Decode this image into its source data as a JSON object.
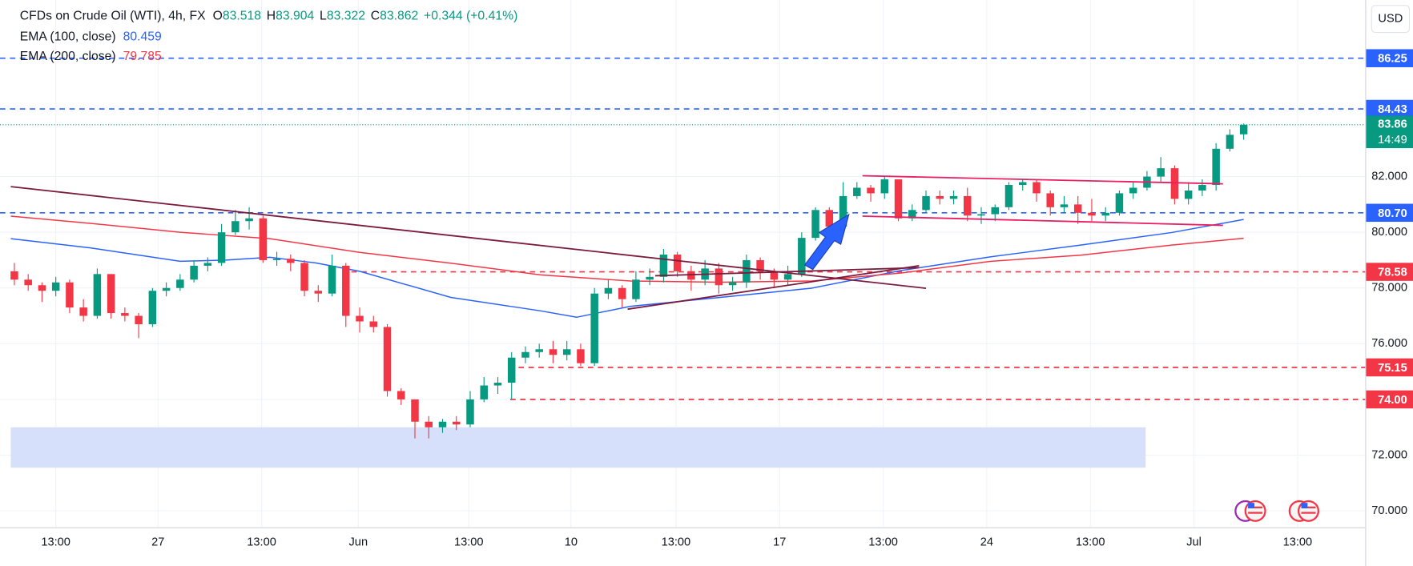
{
  "chart_data": {
    "type": "candlestick",
    "header": {
      "symbol": "CFDs on Crude Oil (WTI), 4h, FX",
      "ohlc_labels": [
        "O",
        "H",
        "L",
        "C"
      ],
      "change": "+0.344 (+0.41%)"
    },
    "currency": "USD",
    "up_color": "#089981",
    "down_color": "#f23645",
    "ohlc": [
      [
        78.6,
        78.9,
        78.1,
        78.3
      ],
      [
        78.3,
        78.5,
        77.9,
        78.1
      ],
      [
        78.1,
        78.2,
        77.5,
        77.9
      ],
      [
        77.9,
        78.4,
        77.7,
        78.2
      ],
      [
        78.2,
        78.3,
        77.1,
        77.3
      ],
      [
        77.3,
        77.6,
        76.8,
        77.0
      ],
      [
        77.0,
        78.7,
        76.9,
        78.5
      ],
      [
        78.5,
        78.5,
        76.9,
        77.1
      ],
      [
        77.1,
        77.3,
        76.8,
        77.0
      ],
      [
        77.0,
        77.1,
        76.2,
        76.7
      ],
      [
        76.7,
        78.0,
        76.6,
        77.9
      ],
      [
        77.9,
        78.2,
        77.7,
        78.0
      ],
      [
        78.0,
        78.5,
        77.9,
        78.3
      ],
      [
        78.3,
        79.0,
        78.2,
        78.8
      ],
      [
        78.8,
        79.1,
        78.6,
        78.9
      ],
      [
        78.9,
        80.3,
        78.8,
        80.0
      ],
      [
        80.0,
        80.8,
        79.9,
        80.4
      ],
      [
        80.4,
        80.9,
        80.1,
        80.5
      ],
      [
        80.5,
        80.6,
        78.9,
        79.0
      ],
      [
        79.0,
        79.3,
        78.8,
        79.05
      ],
      [
        79.05,
        79.2,
        78.6,
        78.9
      ],
      [
        78.9,
        79.0,
        77.7,
        77.9
      ],
      [
        77.9,
        78.1,
        77.5,
        77.8
      ],
      [
        77.8,
        79.2,
        77.7,
        78.8
      ],
      [
        78.8,
        78.9,
        76.6,
        77.0
      ],
      [
        77.0,
        77.3,
        76.4,
        76.8
      ],
      [
        76.8,
        77.0,
        76.4,
        76.6
      ],
      [
        76.6,
        76.7,
        74.1,
        74.3
      ],
      [
        74.3,
        74.4,
        73.8,
        74.0
      ],
      [
        74.0,
        74.0,
        72.6,
        73.2
      ],
      [
        73.2,
        73.4,
        72.6,
        73.0
      ],
      [
        73.0,
        73.3,
        72.8,
        73.2
      ],
      [
        73.2,
        73.4,
        72.9,
        73.1
      ],
      [
        73.1,
        74.3,
        73.0,
        74.0
      ],
      [
        74.0,
        74.8,
        73.9,
        74.5
      ],
      [
        74.5,
        74.8,
        74.2,
        74.6
      ],
      [
        74.6,
        75.7,
        74.0,
        75.5
      ],
      [
        75.5,
        75.9,
        75.3,
        75.7
      ],
      [
        75.7,
        76.0,
        75.5,
        75.8
      ],
      [
        75.8,
        76.1,
        75.3,
        75.6
      ],
      [
        75.6,
        76.1,
        75.4,
        75.8
      ],
      [
        75.8,
        76.0,
        75.2,
        75.3
      ],
      [
        75.3,
        78.0,
        75.2,
        77.8
      ],
      [
        77.8,
        78.3,
        77.6,
        78.0
      ],
      [
        78.0,
        78.1,
        77.3,
        77.6
      ],
      [
        77.6,
        78.6,
        77.5,
        78.3
      ],
      [
        78.3,
        78.7,
        78.1,
        78.4
      ],
      [
        78.4,
        79.4,
        78.2,
        79.2
      ],
      [
        79.2,
        79.3,
        78.4,
        78.6
      ],
      [
        78.6,
        78.8,
        77.9,
        78.3
      ],
      [
        78.3,
        79.0,
        78.1,
        78.7
      ],
      [
        78.7,
        78.9,
        77.8,
        78.1
      ],
      [
        78.1,
        78.4,
        77.9,
        78.2
      ],
      [
        78.2,
        79.2,
        78.0,
        79.0
      ],
      [
        79.0,
        79.1,
        78.3,
        78.6
      ],
      [
        78.6,
        78.7,
        78.0,
        78.3
      ],
      [
        78.3,
        78.8,
        78.1,
        78.5
      ],
      [
        78.5,
        80.0,
        78.4,
        79.8
      ],
      [
        79.8,
        80.9,
        79.7,
        80.8
      ],
      [
        80.8,
        80.9,
        80.0,
        80.2
      ],
      [
        80.2,
        81.8,
        80.1,
        81.3
      ],
      [
        81.3,
        81.8,
        81.2,
        81.6
      ],
      [
        81.6,
        81.7,
        81.1,
        81.4
      ],
      [
        81.4,
        82.0,
        81.2,
        81.9
      ],
      [
        81.9,
        81.9,
        80.4,
        80.5
      ],
      [
        80.5,
        81.0,
        80.4,
        80.8
      ],
      [
        80.8,
        81.5,
        80.7,
        81.3
      ],
      [
        81.3,
        81.5,
        81.0,
        81.2
      ],
      [
        81.2,
        81.5,
        81.0,
        81.3
      ],
      [
        81.3,
        81.6,
        80.4,
        80.6
      ],
      [
        80.6,
        80.9,
        80.3,
        80.65
      ],
      [
        80.65,
        81.0,
        80.4,
        80.9
      ],
      [
        80.9,
        81.8,
        80.8,
        81.7
      ],
      [
        81.7,
        81.9,
        81.5,
        81.8
      ],
      [
        81.8,
        81.9,
        81.1,
        81.4
      ],
      [
        81.4,
        81.5,
        80.6,
        80.9
      ],
      [
        80.9,
        81.3,
        80.7,
        81.0
      ],
      [
        81.0,
        81.3,
        80.3,
        80.7
      ],
      [
        80.7,
        81.2,
        80.4,
        80.6
      ],
      [
        80.6,
        80.9,
        80.4,
        80.7
      ],
      [
        80.7,
        81.5,
        80.6,
        81.4
      ],
      [
        81.4,
        81.8,
        81.2,
        81.6
      ],
      [
        81.6,
        82.2,
        81.5,
        82.0
      ],
      [
        82.0,
        82.7,
        81.8,
        82.3
      ],
      [
        82.3,
        82.4,
        81.0,
        81.2
      ],
      [
        81.2,
        81.8,
        81.0,
        81.5
      ],
      [
        81.5,
        81.9,
        81.3,
        81.7
      ],
      [
        81.7,
        83.2,
        81.5,
        83.0
      ],
      [
        83.0,
        83.7,
        82.9,
        83.5
      ],
      [
        83.518,
        83.904,
        83.322,
        83.862
      ]
    ],
    "ema": [
      {
        "name": "EMA (100, close)",
        "color": "#2962ff",
        "x": [
          -0.26,
          5.5,
          12,
          15.3,
          18.5,
          21.8,
          25,
          31.6,
          38.1,
          40.7,
          44.6,
          51.1,
          57.7,
          64.2,
          70.7,
          77.2,
          83.8,
          89
        ],
        "values": [
          79.77,
          79.44,
          78.96,
          79.0,
          79.1,
          78.9,
          78.6,
          77.66,
          77.18,
          76.95,
          77.34,
          77.66,
          77.99,
          78.63,
          79.12,
          79.54,
          79.99,
          80.459
        ]
      },
      {
        "name": "EMA (200, close)",
        "color": "#f23645",
        "x": [
          -0.26,
          5.5,
          12,
          18.5,
          25,
          31.6,
          38.1,
          44.6,
          51.1,
          57.7,
          64.2,
          70.7,
          77.2,
          83.8,
          89
        ],
        "values": [
          80.58,
          80.32,
          80.0,
          79.77,
          79.28,
          78.89,
          78.47,
          78.25,
          78.21,
          78.25,
          78.54,
          78.96,
          79.18,
          79.54,
          79.785
        ]
      }
    ],
    "levels": [
      {
        "value": 86.25,
        "label": "86.25",
        "color": "#2962ff"
      },
      {
        "value": 84.43,
        "label": "84.43",
        "color": "#2962ff"
      },
      {
        "value": 80.7,
        "label": "80.70",
        "color": "#2962ff"
      },
      {
        "value": 78.58,
        "label": "78.58",
        "color": "#f23645",
        "start": 24.4
      },
      {
        "value": 75.15,
        "label": "75.15",
        "color": "#f23645",
        "start": 36.5
      },
      {
        "value": 74.0,
        "label": "74.00",
        "color": "#f23645",
        "start": 35.9
      }
    ],
    "last_price": {
      "value": 83.862,
      "label": "83.86",
      "countdown": "14:49",
      "color": "#089981"
    },
    "zone": {
      "x": [
        -0.26,
        81.9
      ],
      "y": [
        71.55,
        73.0
      ],
      "color": "#d1ddfb"
    },
    "drawings": [
      {
        "color": "#7b1c3e",
        "points": [
          [
            -0.26,
            81.64
          ],
          [
            66.0,
            77.99
          ]
        ]
      },
      {
        "color": "#7b1c3e",
        "points": [
          [
            44.4,
            77.24
          ],
          [
            65.5,
            78.8
          ]
        ]
      },
      {
        "color": "#7b1c3e",
        "points": [
          [
            46.4,
            78.44
          ],
          [
            65.5,
            78.73
          ]
        ]
      },
      {
        "color": "#e91e63",
        "points": [
          [
            61.4,
            82.03
          ],
          [
            87.5,
            81.74
          ]
        ]
      },
      {
        "color": "#e91e63",
        "points": [
          [
            61.4,
            80.58
          ],
          [
            87.5,
            80.25
          ]
        ]
      }
    ],
    "xlim": [
      -1.04,
      97.8
    ],
    "ylim": [
      69.41,
      88.34
    ],
    "yticks": [
      {
        "value": 70,
        "label": "70.000"
      },
      {
        "value": 72,
        "label": "72.000"
      },
      {
        "value": 74,
        "label": "74.000"
      },
      {
        "value": 76,
        "label": "76.000"
      },
      {
        "value": 78,
        "label": "78.000"
      },
      {
        "value": 80,
        "label": "80.000"
      },
      {
        "value": 82,
        "label": "82.000"
      }
    ],
    "xticks": [
      {
        "value": 3.0,
        "label": "13:00"
      },
      {
        "value": 10.4,
        "label": "27"
      },
      {
        "value": 17.9,
        "label": "13:00"
      },
      {
        "value": 24.9,
        "label": "Jun"
      },
      {
        "value": 32.9,
        "label": "13:00"
      },
      {
        "value": 40.3,
        "label": "10"
      },
      {
        "value": 47.9,
        "label": "13:00"
      },
      {
        "value": 55.4,
        "label": "17"
      },
      {
        "value": 62.9,
        "label": "13:00"
      },
      {
        "value": 70.4,
        "label": "24"
      },
      {
        "value": 77.9,
        "label": "13:00"
      },
      {
        "value": 85.4,
        "label": "Jul"
      },
      {
        "value": 92.9,
        "label": "13:00"
      }
    ],
    "grid": true
  }
}
